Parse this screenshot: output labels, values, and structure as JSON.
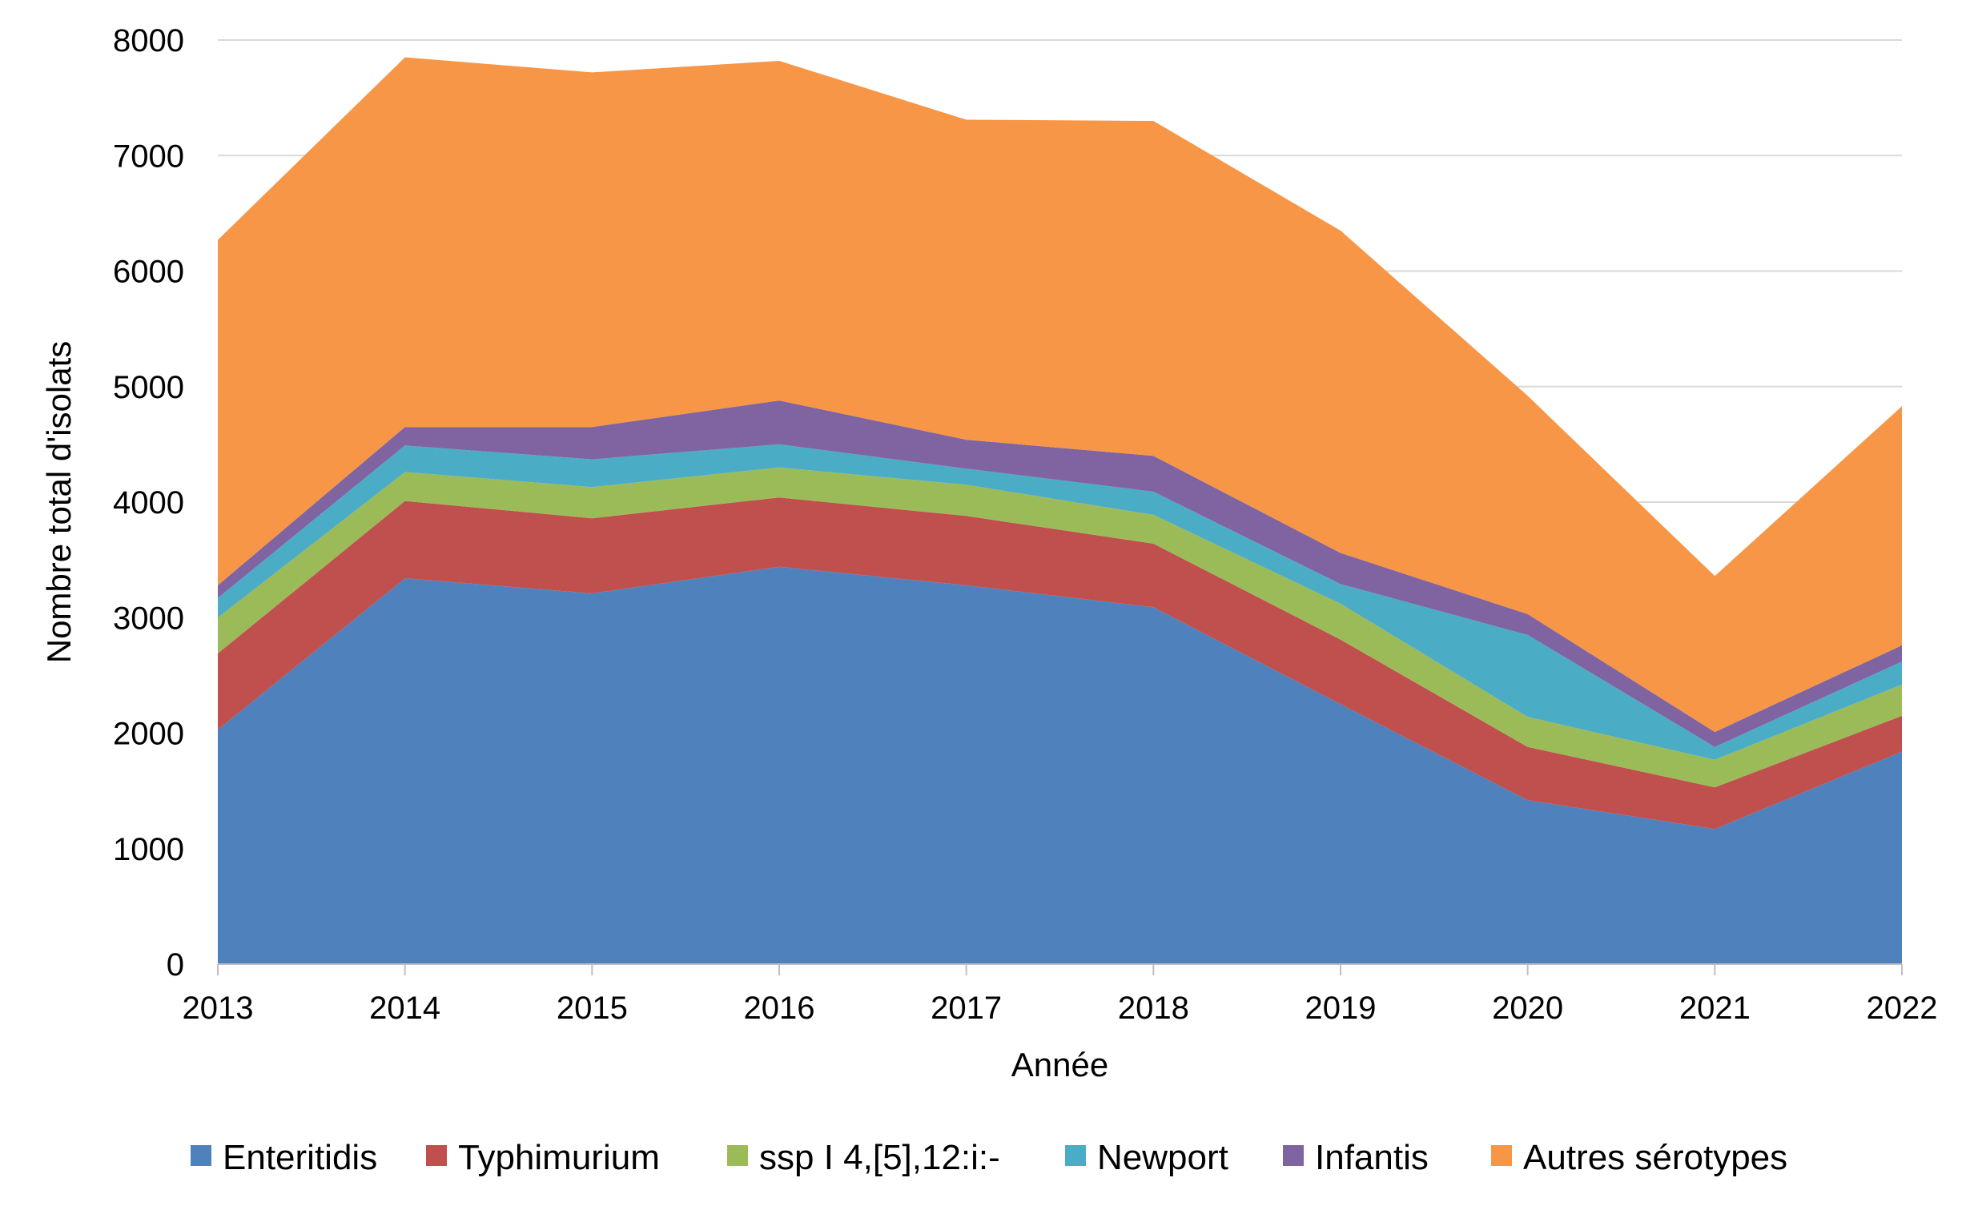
{
  "chart_data": {
    "type": "area",
    "stacked": true,
    "title": "",
    "xlabel": "Année",
    "ylabel": "Nombre total d'isolats",
    "x": [
      "2013",
      "2014",
      "2015",
      "2016",
      "2017",
      "2018",
      "2019",
      "2020",
      "2021",
      "2022"
    ],
    "ylim": [
      0,
      8000
    ],
    "yticks": [
      "0",
      "1000",
      "2000",
      "3000",
      "4000",
      "5000",
      "6000",
      "7000",
      "8000"
    ],
    "grid": true,
    "legend_position": "bottom",
    "series": [
      {
        "name": "Enteritidis",
        "color": "#4F81BD",
        "values": [
          2030,
          3340,
          3210,
          3440,
          3280,
          3090,
          2250,
          1420,
          1170,
          1840
        ]
      },
      {
        "name": "Typhimurium",
        "color": "#C0504D",
        "values": [
          660,
          670,
          650,
          600,
          600,
          550,
          560,
          460,
          360,
          310
        ]
      },
      {
        "name": "ssp I 4,[5],12:i:-",
        "color": "#9BBB59",
        "values": [
          310,
          250,
          270,
          260,
          270,
          250,
          310,
          260,
          240,
          270
        ]
      },
      {
        "name": "Newport",
        "color": "#4BACC6",
        "values": [
          170,
          230,
          240,
          200,
          140,
          200,
          170,
          710,
          110,
          200
        ]
      },
      {
        "name": "Infantis",
        "color": "#8064A2",
        "values": [
          110,
          160,
          280,
          380,
          250,
          310,
          270,
          180,
          130,
          140
        ]
      },
      {
        "name": "Autres sérotypes",
        "color": "#F79646",
        "values": [
          2990,
          3200,
          3070,
          2940,
          2770,
          2900,
          2790,
          1890,
          1350,
          2070
        ]
      }
    ]
  }
}
